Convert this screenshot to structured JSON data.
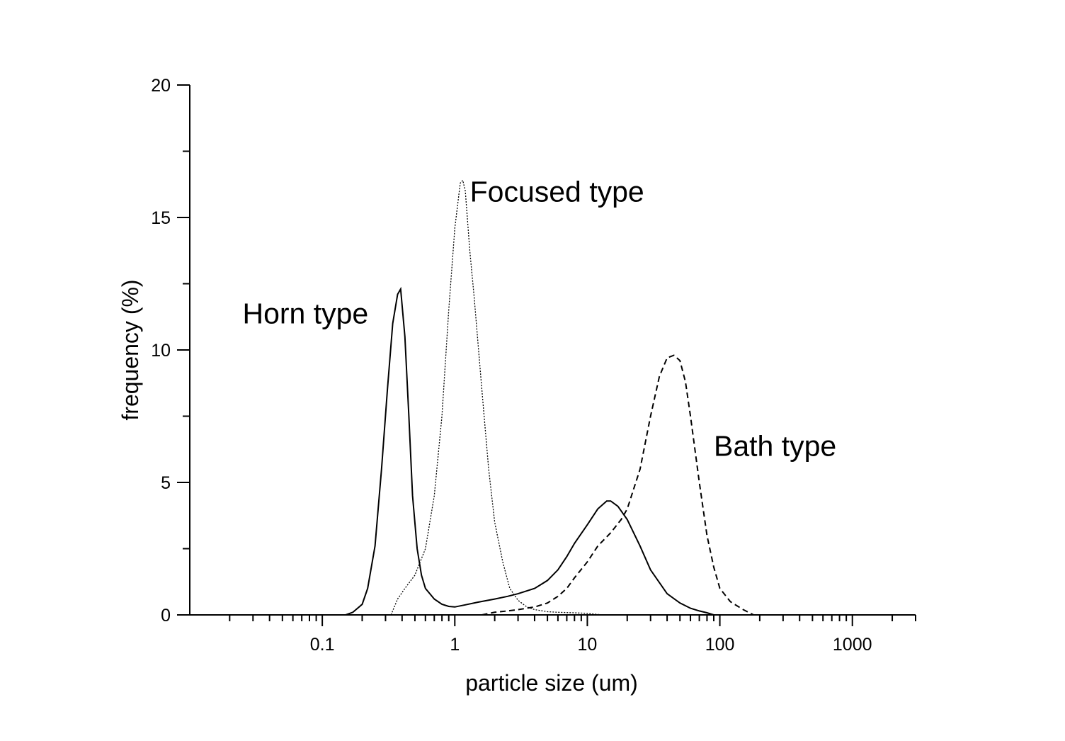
{
  "chart_data": {
    "type": "line",
    "title": "",
    "xlabel": "particle size (um)",
    "ylabel": "frequency (%)",
    "x_scale": "log",
    "xlim": [
      0.01,
      3000
    ],
    "ylim": [
      0,
      20
    ],
    "x_ticks": [
      0.1,
      1,
      10,
      100,
      1000
    ],
    "x_tick_labels": [
      "0.1",
      "1",
      "10",
      "100",
      "1000"
    ],
    "y_ticks": [
      0,
      5,
      10,
      15,
      20
    ],
    "y_tick_labels": [
      "0",
      "5",
      "10",
      "15",
      "20"
    ],
    "grid": false,
    "legend": "none",
    "annotations": [
      {
        "text": "Horn type",
        "x": 0.025,
        "y": 11.0
      },
      {
        "text": "Focused type",
        "x": 1.3,
        "y": 15.6
      },
      {
        "text": "Bath type",
        "x": 90,
        "y": 6.0
      }
    ],
    "series": [
      {
        "style": "solid",
        "x": [
          0.15,
          0.17,
          0.2,
          0.22,
          0.25,
          0.28,
          0.31,
          0.34,
          0.37,
          0.39,
          0.42,
          0.45,
          0.48,
          0.52,
          0.56,
          0.6,
          0.7,
          0.8,
          0.9,
          1.0,
          1.2,
          1.5,
          2.0,
          2.5,
          3.0,
          4.0,
          5.0,
          6.0,
          7.0,
          8.0,
          10,
          12,
          14,
          15,
          17,
          20,
          25,
          30,
          40,
          50,
          60,
          70,
          80,
          90
        ],
        "y": [
          0.0,
          0.1,
          0.4,
          1.0,
          2.6,
          5.5,
          8.5,
          11.0,
          12.1,
          12.3,
          10.5,
          7.5,
          4.5,
          2.5,
          1.5,
          1.0,
          0.6,
          0.4,
          0.32,
          0.3,
          0.38,
          0.48,
          0.6,
          0.7,
          0.8,
          1.0,
          1.3,
          1.7,
          2.2,
          2.7,
          3.4,
          4.0,
          4.3,
          4.3,
          4.1,
          3.6,
          2.6,
          1.7,
          0.8,
          0.45,
          0.25,
          0.15,
          0.08,
          0.0
        ]
      },
      {
        "style": "dotted",
        "x": [
          0.33,
          0.37,
          0.42,
          0.5,
          0.6,
          0.7,
          0.8,
          0.9,
          1.0,
          1.1,
          1.15,
          1.2,
          1.3,
          1.4,
          1.6,
          1.8,
          2.0,
          2.3,
          2.6,
          3.0,
          3.5,
          4.0,
          5.0,
          6.0,
          8.0,
          10,
          13
        ],
        "y": [
          0.0,
          0.6,
          1.0,
          1.5,
          2.5,
          4.5,
          7.5,
          11.5,
          14.6,
          16.3,
          16.4,
          16.0,
          13.7,
          12.0,
          8.5,
          5.5,
          3.5,
          2.0,
          1.0,
          0.55,
          0.3,
          0.2,
          0.12,
          0.1,
          0.08,
          0.06,
          0.0
        ]
      },
      {
        "style": "dashed",
        "x": [
          1.6,
          2.0,
          2.5,
          3.0,
          4.0,
          5.0,
          6.0,
          7.0,
          8.0,
          10,
          12,
          15,
          18,
          20,
          25,
          30,
          35,
          40,
          45,
          50,
          55,
          60,
          70,
          80,
          90,
          100,
          120,
          150,
          180
        ],
        "y": [
          0.0,
          0.1,
          0.15,
          0.2,
          0.3,
          0.45,
          0.7,
          1.0,
          1.4,
          2.0,
          2.6,
          3.1,
          3.6,
          4.0,
          5.5,
          7.5,
          9.0,
          9.7,
          9.8,
          9.6,
          8.8,
          7.5,
          5.0,
          3.0,
          1.8,
          1.0,
          0.5,
          0.2,
          0.0
        ]
      }
    ]
  }
}
